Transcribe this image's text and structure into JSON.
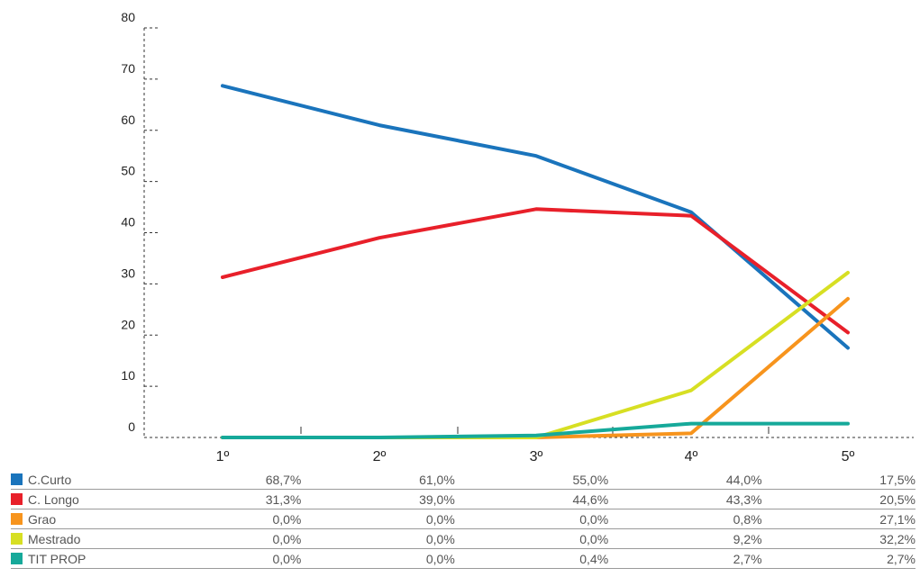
{
  "chart_data": {
    "type": "line",
    "categories": [
      "1º",
      "2º",
      "3º",
      "4º",
      "5º"
    ],
    "ylim": [
      0,
      80
    ],
    "yticks": [
      0,
      10,
      20,
      30,
      40,
      50,
      60,
      70,
      80
    ],
    "grid": false,
    "legend": "table-below",
    "series": [
      {
        "name": "C.Curto",
        "color": "#1a74bc",
        "values": [
          68.7,
          61.0,
          55.0,
          44.0,
          17.5
        ],
        "labels": [
          "68,7%",
          "61,0%",
          "55,0%",
          "44,0%",
          "17,5%"
        ]
      },
      {
        "name": "C. Longo",
        "color": "#e8202a",
        "values": [
          31.3,
          39.0,
          44.6,
          43.3,
          20.5
        ],
        "labels": [
          "31,3%",
          "39,0%",
          "44,6%",
          "43,3%",
          "20,5%"
        ]
      },
      {
        "name": "Grao",
        "color": "#f7941d",
        "values": [
          0.0,
          0.0,
          0.0,
          0.8,
          27.1
        ],
        "labels": [
          "0,0%",
          "0,0%",
          "0,0%",
          "0,8%",
          "27,1%"
        ]
      },
      {
        "name": "Mestrado",
        "color": "#d7df23",
        "values": [
          0.0,
          0.0,
          0.0,
          9.2,
          32.2
        ],
        "labels": [
          "0,0%",
          "0,0%",
          "0,0%",
          "9,2%",
          "32,2%"
        ]
      },
      {
        "name": "TIT PROP",
        "color": "#16a99a",
        "values": [
          0.0,
          0.0,
          0.4,
          2.7,
          2.7
        ],
        "labels": [
          "0,0%",
          "0,0%",
          "0,4%",
          "2,7%",
          "2,7%"
        ]
      }
    ]
  }
}
